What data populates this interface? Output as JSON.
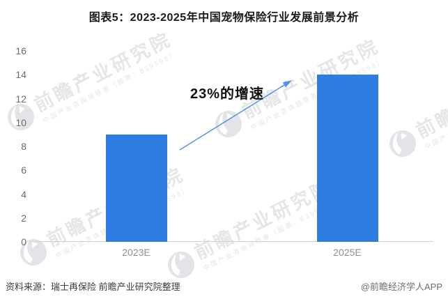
{
  "title": "图表5：2023-2025年中国宠物保险行业发展前景分析",
  "chart_data": {
    "type": "bar",
    "title": "图表5：2023-2025年中国宠物保险行业发展前景分析",
    "categories": [
      "2023E",
      "2025E"
    ],
    "values": [
      9,
      14
    ],
    "xlabel": "",
    "ylabel": "",
    "ylim": [
      0,
      16
    ],
    "yticks": [
      0,
      2,
      4,
      6,
      8,
      10,
      12,
      14,
      16
    ],
    "grid": false,
    "legend_position": "none",
    "bar_color": "#2F7DE3",
    "annotation": {
      "text": "23%的增速",
      "arrow_color": "#5590EA"
    }
  },
  "footer": {
    "source": "资料来源：瑞士再保险 前瞻产业研究院整理",
    "credit": "@前瞻经济学人APP"
  },
  "watermark": {
    "brand": "前瞻产业研究院",
    "tagline": "中国产业咨询领导者（股票：839599）"
  }
}
